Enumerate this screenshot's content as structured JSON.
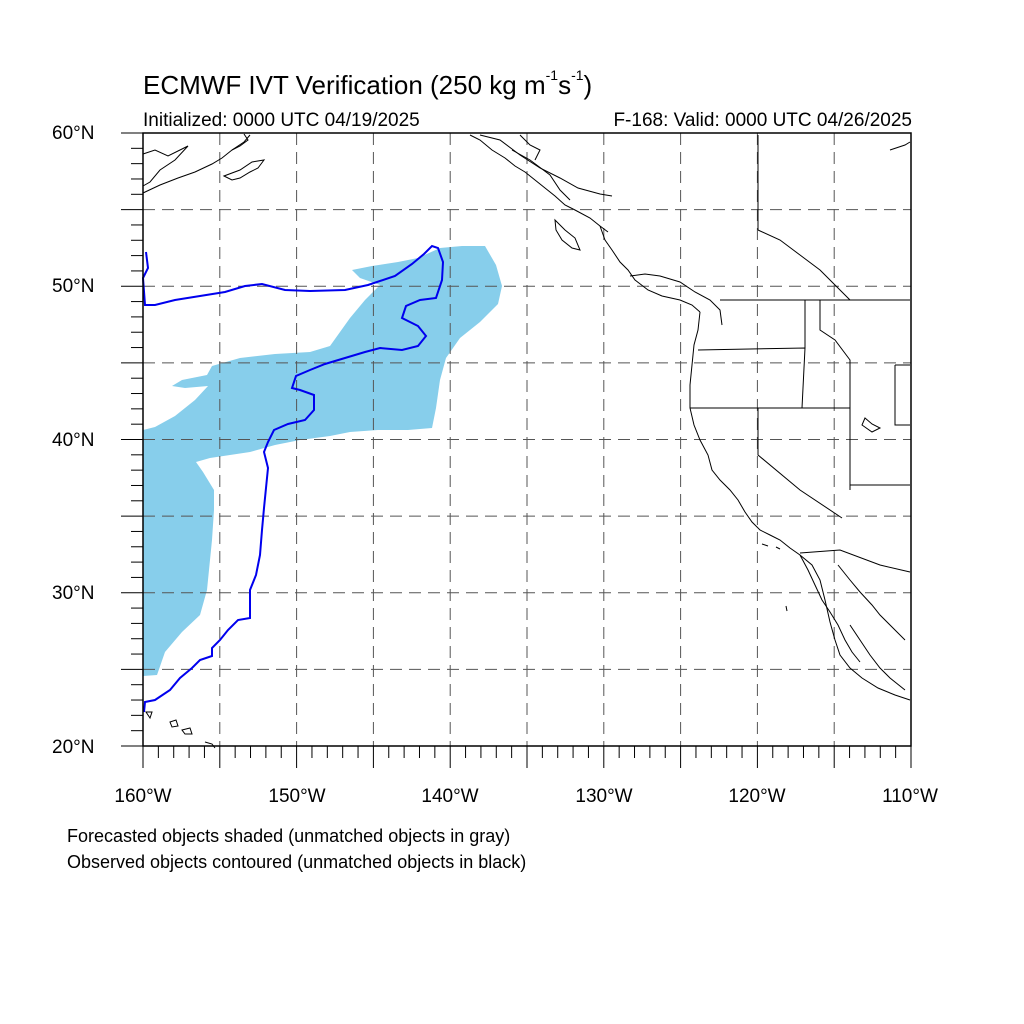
{
  "header": {
    "title_prefix": "ECMWF IVT Verification (250 kg m",
    "title_exp1": "-1",
    "title_mid": "s",
    "title_exp2": "-1",
    "title_suffix": ")",
    "initialized": "Initialized: 0000 UTC 04/19/2025",
    "valid": "F-168: Valid: 0000 UTC 04/26/2025"
  },
  "axes": {
    "lat_labels": [
      "60°N",
      "50°N",
      "40°N",
      "30°N",
      "20°N"
    ],
    "lon_labels": [
      "160°W",
      "150°W",
      "140°W",
      "130°W",
      "120°W",
      "110°W"
    ],
    "lat_range": [
      20,
      60
    ],
    "lon_range": [
      -160,
      -110
    ],
    "grid": "dashed, every 5 degrees"
  },
  "legend": {
    "line1": "Forecasted objects shaded (unmatched objects in gray)",
    "line2": "Observed objects contoured (unmatched objects in black)"
  },
  "colors": {
    "forecast_fill": "#87ceeb",
    "observed_contour": "#0000ee",
    "coastline": "#000000",
    "grid": "#555555"
  }
}
